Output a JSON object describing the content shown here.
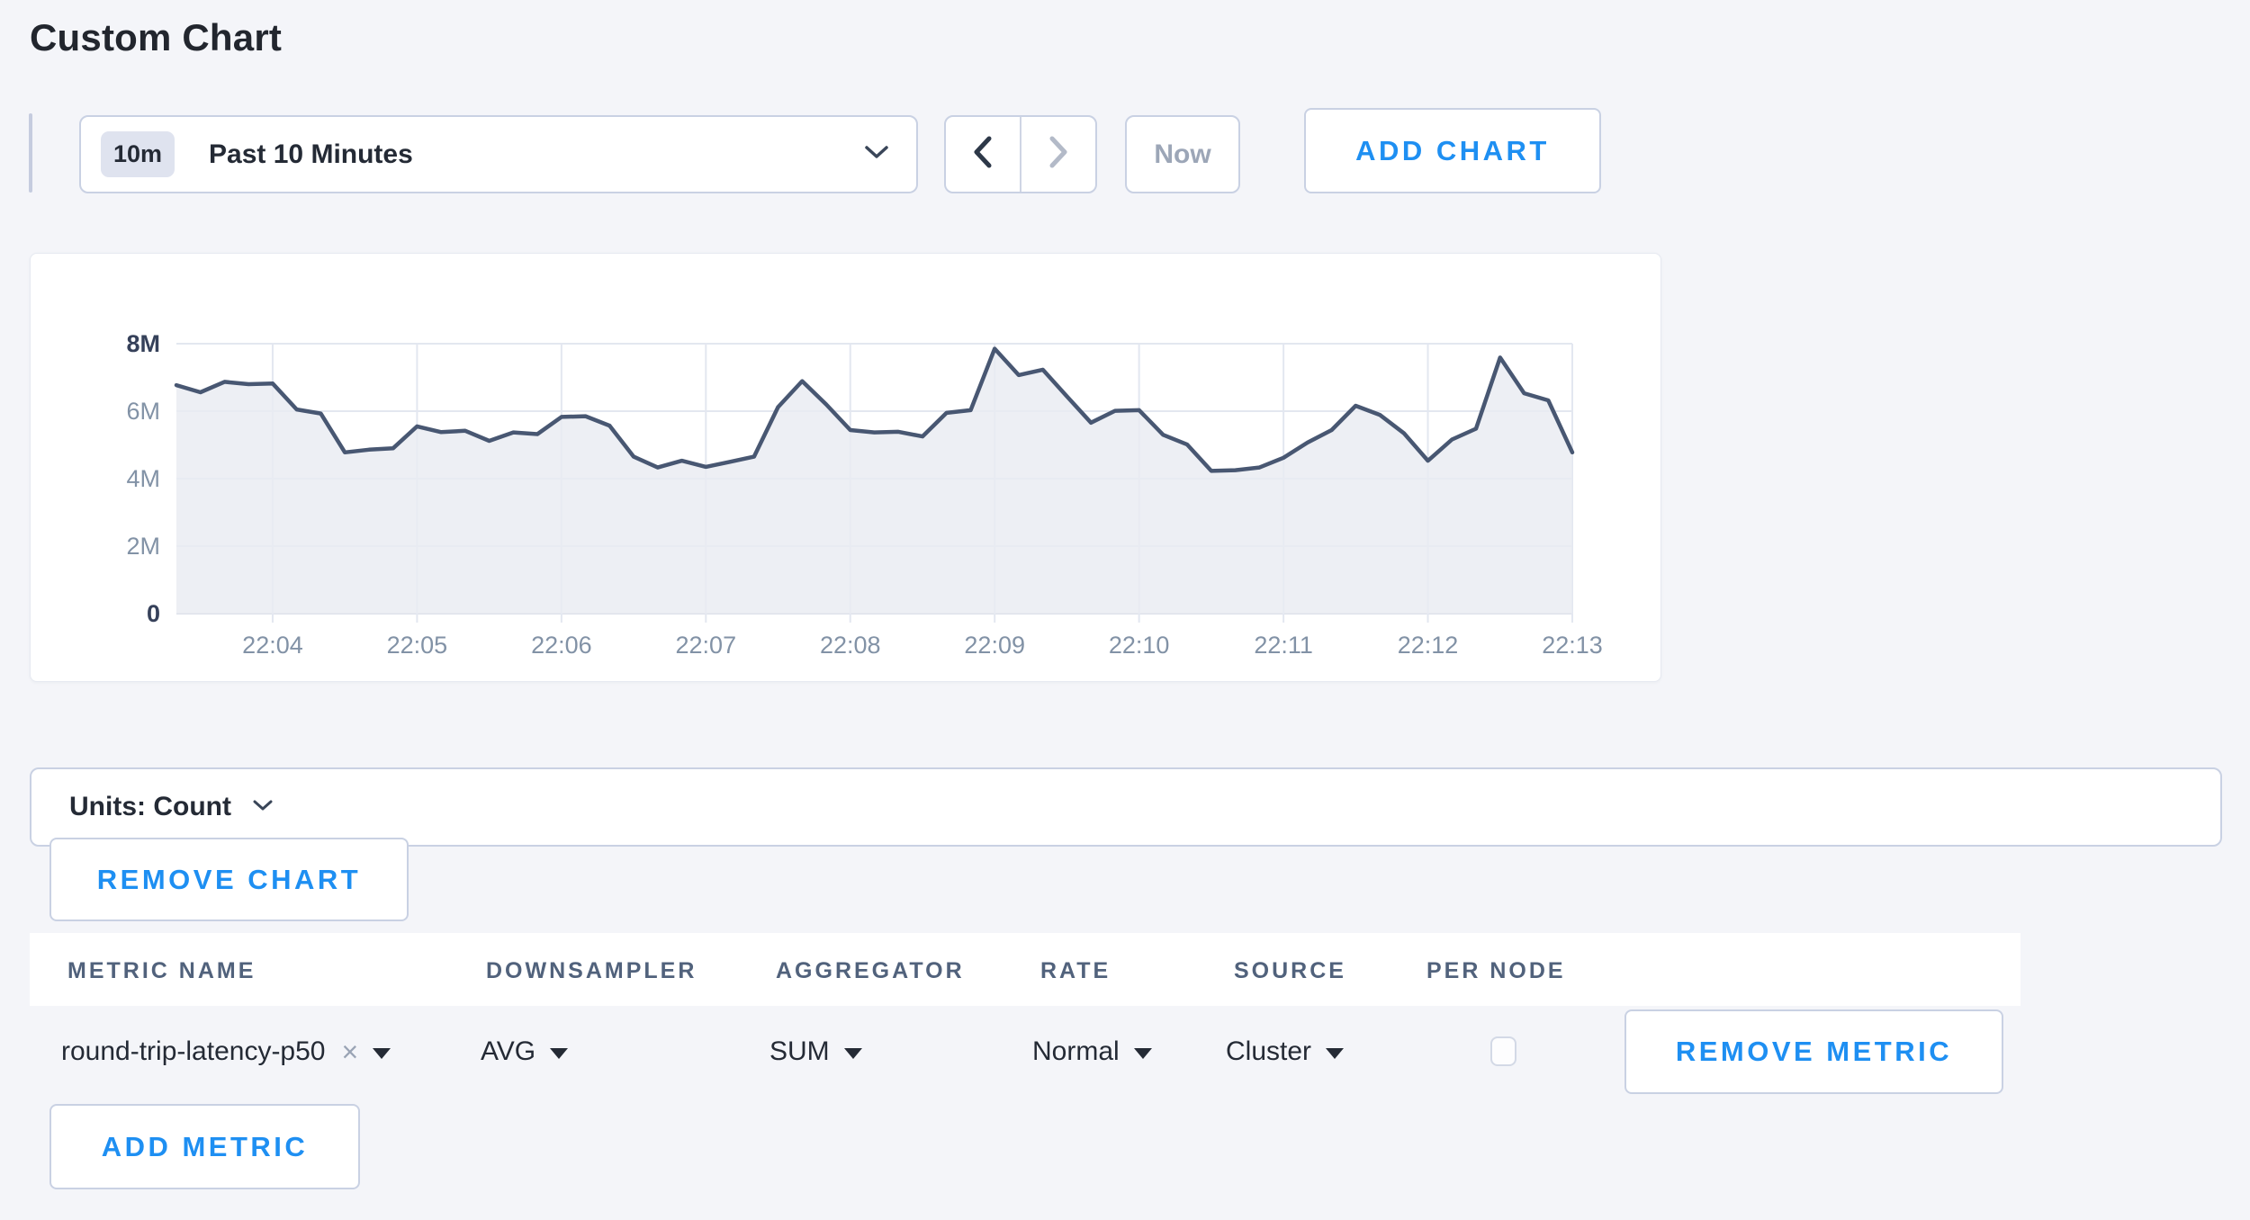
{
  "page": {
    "title": "Custom Chart"
  },
  "colors": {
    "accent_blue": "#1e8ff2",
    "line": "#485772",
    "area_fill": "#e9ebf2",
    "gridline": "#e3e7f0",
    "axis_label": "#8292a6",
    "axis_label_bold": "#36415a"
  },
  "toolbar": {
    "range_badge": "10m",
    "range_label": "Past 10 Minutes",
    "now_label": "Now",
    "add_chart_label": "ADD CHART"
  },
  "chart_data": {
    "type": "area",
    "title": "",
    "unit": "Count",
    "x_start": "22:03:20",
    "x_end": "22:13:00",
    "interval_seconds": 10,
    "ylim_millions": [
      0,
      8
    ],
    "grid": true,
    "legend": "none",
    "y_ticks": [
      {
        "label": "8M",
        "value_millions": 8,
        "bold": true
      },
      {
        "label": "6M",
        "value_millions": 6,
        "bold": false
      },
      {
        "label": "4M",
        "value_millions": 4,
        "bold": false
      },
      {
        "label": "2M",
        "value_millions": 2,
        "bold": false
      },
      {
        "label": "0",
        "value_millions": 0,
        "bold": true
      }
    ],
    "x_ticks": [
      {
        "label": "22:04",
        "index": 4
      },
      {
        "label": "22:05",
        "index": 10
      },
      {
        "label": "22:06",
        "index": 16
      },
      {
        "label": "22:07",
        "index": 22
      },
      {
        "label": "22:08",
        "index": 28
      },
      {
        "label": "22:09",
        "index": 34
      },
      {
        "label": "22:10",
        "index": 40
      },
      {
        "label": "22:11",
        "index": 46
      },
      {
        "label": "22:12",
        "index": 52
      },
      {
        "label": "22:13",
        "index": 58
      }
    ],
    "series": [
      {
        "name": "round-trip-latency-p50",
        "values_millions": [
          6.77,
          6.56,
          6.87,
          6.8,
          6.82,
          6.05,
          5.93,
          4.78,
          4.86,
          4.9,
          5.55,
          5.38,
          5.42,
          5.12,
          5.37,
          5.32,
          5.83,
          5.85,
          5.57,
          4.65,
          4.33,
          4.53,
          4.35,
          4.5,
          4.65,
          6.12,
          6.89,
          6.2,
          5.44,
          5.37,
          5.39,
          5.25,
          5.95,
          6.03,
          7.85,
          7.07,
          7.23,
          6.44,
          5.66,
          6.01,
          6.03,
          5.3,
          5.01,
          4.23,
          4.25,
          4.33,
          4.62,
          5.07,
          5.44,
          6.16,
          5.89,
          5.35,
          4.53,
          5.16,
          5.48,
          7.59,
          6.53,
          6.32,
          4.78
        ]
      }
    ]
  },
  "units_bar": {
    "label": "Units: Count"
  },
  "buttons": {
    "remove_chart": "REMOVE CHART",
    "remove_metric": "REMOVE METRIC",
    "add_metric": "ADD METRIC"
  },
  "metrics_table": {
    "headers": [
      "METRIC NAME",
      "DOWNSAMPLER",
      "AGGREGATOR",
      "RATE",
      "SOURCE",
      "PER NODE"
    ],
    "row": {
      "metric_name": "round-trip-latency-p50",
      "remove_tag": "×",
      "downsampler": "AVG",
      "aggregator": "SUM",
      "rate": "Normal",
      "source": "Cluster",
      "per_node_checked": false
    }
  }
}
